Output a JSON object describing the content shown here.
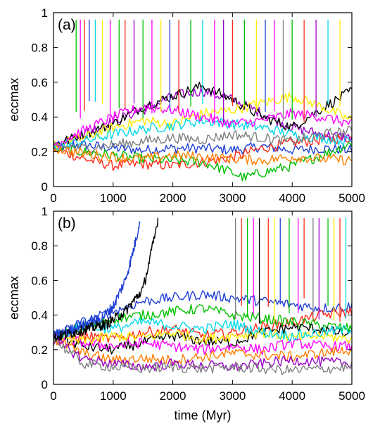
{
  "chart_data": [
    {
      "type": "line",
      "panel_label": "(a)",
      "xlabel": "",
      "ylabel": "eccmax",
      "xlim": [
        0,
        5000
      ],
      "ylim": [
        0,
        1
      ],
      "xticks": [
        0,
        1000,
        2000,
        3000,
        4000,
        5000
      ],
      "yticks": [
        0,
        0.2,
        0.4,
        0.6,
        0.8,
        1
      ],
      "ytick_labels": [
        "0",
        "0.2",
        "0.4",
        "0.6",
        "0.8",
        "1"
      ],
      "grid": false,
      "legend": "none",
      "series": [
        {
          "color": "#1f3fd6",
          "x": [
            0,
            500,
            1000,
            1500,
            2000,
            2500,
            3000,
            3500,
            4000,
            4500,
            5000
          ],
          "y": [
            0.23,
            0.24,
            0.22,
            0.21,
            0.22,
            0.22,
            0.21,
            0.23,
            0.21,
            0.22,
            0.21
          ]
        },
        {
          "color": "#ff2a1a",
          "x": [
            0,
            500,
            1000,
            1500,
            2000,
            2500,
            3000,
            3500,
            4000,
            4500,
            5000
          ],
          "y": [
            0.22,
            0.16,
            0.12,
            0.13,
            0.12,
            0.14,
            0.17,
            0.22,
            0.25,
            0.27,
            0.28
          ]
        },
        {
          "color": "#9a00c8",
          "x": [
            0,
            500,
            1000,
            1500,
            2000,
            2500,
            3000,
            3500,
            4000,
            4500,
            5000
          ],
          "y": [
            0.24,
            0.3,
            0.38,
            0.44,
            0.52,
            0.55,
            0.5,
            0.42,
            0.34,
            0.3,
            0.28
          ]
        },
        {
          "color": "#00c000",
          "x": [
            0,
            500,
            1000,
            1500,
            2000,
            2500,
            3000,
            3200,
            3500,
            4000,
            4500,
            5000
          ],
          "y": [
            0.22,
            0.2,
            0.18,
            0.16,
            0.15,
            0.14,
            0.08,
            0.05,
            0.08,
            0.12,
            0.18,
            0.25
          ]
        },
        {
          "color": "#000000",
          "x": [
            0,
            500,
            1000,
            1500,
            2000,
            2500,
            3000,
            3500,
            4000,
            4500,
            5000
          ],
          "y": [
            0.24,
            0.3,
            0.36,
            0.46,
            0.52,
            0.58,
            0.5,
            0.4,
            0.34,
            0.45,
            0.55
          ]
        },
        {
          "color": "#ffee00",
          "x": [
            0,
            500,
            1000,
            1500,
            2000,
            2500,
            3000,
            3500,
            4000,
            4500,
            5000
          ],
          "y": [
            0.24,
            0.28,
            0.34,
            0.38,
            0.36,
            0.42,
            0.44,
            0.48,
            0.52,
            0.46,
            0.38
          ]
        },
        {
          "color": "#00d8e8",
          "x": [
            0,
            500,
            1000,
            1500,
            2000,
            2500,
            3000,
            3500,
            4000,
            4500,
            5000
          ],
          "y": [
            0.23,
            0.26,
            0.3,
            0.33,
            0.35,
            0.38,
            0.36,
            0.34,
            0.3,
            0.28,
            0.26
          ]
        },
        {
          "color": "#ff00ff",
          "x": [
            0,
            500,
            1000,
            1500,
            2000,
            2500,
            3000,
            3500,
            4000,
            4500,
            5000
          ],
          "y": [
            0.24,
            0.32,
            0.4,
            0.46,
            0.44,
            0.4,
            0.36,
            0.38,
            0.42,
            0.4,
            0.36
          ]
        },
        {
          "color": "#808080",
          "x": [
            0,
            500,
            1000,
            1500,
            2000,
            2500,
            3000,
            3500,
            4000,
            4500,
            5000
          ],
          "y": [
            0.23,
            0.22,
            0.24,
            0.26,
            0.28,
            0.27,
            0.3,
            0.28,
            0.26,
            0.3,
            0.32
          ]
        },
        {
          "color": "#ff7f00",
          "x": [
            0,
            500,
            1000,
            1500,
            2000,
            2500,
            3000,
            3500,
            4000,
            4500,
            5000
          ],
          "y": [
            0.22,
            0.19,
            0.17,
            0.16,
            0.18,
            0.17,
            0.16,
            0.15,
            0.17,
            0.16,
            0.15
          ]
        }
      ],
      "spikes": [
        {
          "x": 380,
          "color": "#00c000"
        },
        {
          "x": 450,
          "color": "#ff00ff"
        },
        {
          "x": 520,
          "color": "#ff2a1a"
        },
        {
          "x": 600,
          "color": "#1f3fd6"
        },
        {
          "x": 700,
          "color": "#00d8e8"
        },
        {
          "x": 820,
          "color": "#ffee00"
        },
        {
          "x": 950,
          "color": "#ff00ff"
        },
        {
          "x": 1100,
          "color": "#00c000"
        },
        {
          "x": 1200,
          "color": "#ff2a1a"
        },
        {
          "x": 1350,
          "color": "#9a00c8"
        },
        {
          "x": 1500,
          "color": "#00c000"
        },
        {
          "x": 1650,
          "color": "#ff00ff"
        },
        {
          "x": 1800,
          "color": "#ffee00"
        },
        {
          "x": 1950,
          "color": "#1f3fd6"
        },
        {
          "x": 2100,
          "color": "#ff2a1a"
        },
        {
          "x": 2300,
          "color": "#00c000"
        },
        {
          "x": 2500,
          "color": "#00d8e8"
        },
        {
          "x": 2700,
          "color": "#ff00ff"
        },
        {
          "x": 2850,
          "color": "#9a00c8"
        },
        {
          "x": 3000,
          "color": "#ff2a1a"
        },
        {
          "x": 3200,
          "color": "#00c000"
        },
        {
          "x": 3400,
          "color": "#ffee00"
        },
        {
          "x": 3550,
          "color": "#1f3fd6"
        },
        {
          "x": 3700,
          "color": "#ff00ff"
        },
        {
          "x": 3850,
          "color": "#808080"
        },
        {
          "x": 4000,
          "color": "#00c000"
        },
        {
          "x": 4200,
          "color": "#ff2a1a"
        },
        {
          "x": 4400,
          "color": "#9a00c8"
        },
        {
          "x": 4600,
          "color": "#00d8e8"
        },
        {
          "x": 4800,
          "color": "#ffee00"
        }
      ]
    },
    {
      "type": "line",
      "panel_label": "(b)",
      "xlabel": "time (Myr)",
      "ylabel": "eccmax",
      "xlim": [
        0,
        5000
      ],
      "ylim": [
        0,
        1
      ],
      "xticks": [
        0,
        1000,
        2000,
        3000,
        4000,
        5000
      ],
      "yticks": [
        0,
        0.2,
        0.4,
        0.6,
        0.8,
        1
      ],
      "ytick_labels": [
        "0",
        "0.2",
        "0.4",
        "0.6",
        "0.8",
        "1"
      ],
      "grid": false,
      "legend": "none",
      "series": [
        {
          "color": "#1f3fd6",
          "x": [
            0,
            500,
            1000,
            1500,
            2000,
            2500,
            3000,
            3500,
            4000,
            4500,
            5000
          ],
          "y": [
            0.28,
            0.36,
            0.42,
            0.48,
            0.5,
            0.52,
            0.5,
            0.48,
            0.46,
            0.44,
            0.45
          ]
        },
        {
          "color": "#ff2a1a",
          "x": [
            0,
            500,
            1000,
            1500,
            2000,
            2500,
            3000,
            3500,
            4000,
            4500,
            5000
          ],
          "y": [
            0.26,
            0.28,
            0.26,
            0.3,
            0.32,
            0.28,
            0.3,
            0.33,
            0.36,
            0.4,
            0.42
          ]
        },
        {
          "color": "#00c000",
          "x": [
            0,
            500,
            1000,
            1500,
            2000,
            2500,
            3000,
            3500,
            4000,
            4500,
            5000
          ],
          "y": [
            0.27,
            0.33,
            0.38,
            0.4,
            0.42,
            0.44,
            0.4,
            0.38,
            0.36,
            0.34,
            0.32
          ]
        },
        {
          "color": "#000000",
          "x": [
            0,
            500,
            1000,
            1500,
            2000,
            2500,
            3000,
            3500,
            4000,
            4500,
            5000
          ],
          "y": [
            0.28,
            0.22,
            0.2,
            0.24,
            0.28,
            0.25,
            0.24,
            0.3,
            0.33,
            0.32,
            0.28
          ]
        },
        {
          "color": "#ff00ff",
          "x": [
            0,
            500,
            1000,
            1500,
            2000,
            2500,
            3000,
            3500,
            4000,
            4500,
            5000
          ],
          "y": [
            0.27,
            0.24,
            0.22,
            0.24,
            0.22,
            0.2,
            0.22,
            0.2,
            0.24,
            0.22,
            0.22
          ]
        },
        {
          "color": "#ffee00",
          "x": [
            0,
            500,
            1000,
            1500,
            2000,
            2500,
            3000,
            3500,
            4000,
            4500,
            5000
          ],
          "y": [
            0.26,
            0.25,
            0.28,
            0.27,
            0.3,
            0.26,
            0.28,
            0.3,
            0.27,
            0.28,
            0.26
          ]
        },
        {
          "color": "#00d8e8",
          "x": [
            0,
            500,
            1000,
            1500,
            2000,
            2500,
            3000,
            3500,
            4000,
            4500,
            5000
          ],
          "y": [
            0.27,
            0.34,
            0.32,
            0.36,
            0.34,
            0.32,
            0.35,
            0.3,
            0.28,
            0.3,
            0.32
          ]
        },
        {
          "color": "#ff7f00",
          "x": [
            0,
            500,
            1000,
            1500,
            2000,
            2500,
            3000,
            3500,
            4000,
            4500,
            5000
          ],
          "y": [
            0.26,
            0.18,
            0.14,
            0.15,
            0.14,
            0.16,
            0.18,
            0.17,
            0.16,
            0.18,
            0.2
          ]
        },
        {
          "color": "#9a00c8",
          "x": [
            0,
            500,
            1000,
            1500,
            2000,
            2500,
            3000,
            3500,
            4000,
            4500,
            5000
          ],
          "y": [
            0.25,
            0.15,
            0.12,
            0.1,
            0.12,
            0.11,
            0.1,
            0.12,
            0.14,
            0.13,
            0.12
          ]
        },
        {
          "color": "#808080",
          "x": [
            0,
            500,
            1000,
            1500,
            2000,
            2500,
            3000,
            3500,
            4000,
            4500,
            5000
          ],
          "y": [
            0.26,
            0.12,
            0.1,
            0.09,
            0.1,
            0.09,
            0.1,
            0.09,
            0.08,
            0.09,
            0.1
          ]
        },
        {
          "color": "#1f3fd6",
          "x": [
            0,
            800,
            1000,
            1200,
            1300,
            1400,
            1450
          ],
          "y": [
            0.28,
            0.38,
            0.45,
            0.6,
            0.72,
            0.86,
            0.96
          ]
        },
        {
          "color": "#000000",
          "x": [
            0,
            900,
            1200,
            1500,
            1600,
            1700,
            1750
          ],
          "y": [
            0.27,
            0.35,
            0.42,
            0.55,
            0.7,
            0.86,
            0.96
          ]
        }
      ],
      "spikes": [
        {
          "x": 3050,
          "color": "#808080"
        },
        {
          "x": 3150,
          "color": "#ff2a1a"
        },
        {
          "x": 3250,
          "color": "#00c000"
        },
        {
          "x": 3350,
          "color": "#ff00ff"
        },
        {
          "x": 3450,
          "color": "#000000"
        },
        {
          "x": 3600,
          "color": "#ff2a1a"
        },
        {
          "x": 3700,
          "color": "#ffee00"
        },
        {
          "x": 3800,
          "color": "#1f3fd6"
        },
        {
          "x": 3950,
          "color": "#00c000"
        },
        {
          "x": 4100,
          "color": "#ff00ff"
        },
        {
          "x": 4200,
          "color": "#ff2a1a"
        },
        {
          "x": 4350,
          "color": "#808080"
        },
        {
          "x": 4450,
          "color": "#9a00c8"
        },
        {
          "x": 4600,
          "color": "#00c000"
        },
        {
          "x": 4700,
          "color": "#ffee00"
        },
        {
          "x": 4800,
          "color": "#ff2a1a"
        },
        {
          "x": 4900,
          "color": "#00d8e8"
        }
      ]
    }
  ]
}
